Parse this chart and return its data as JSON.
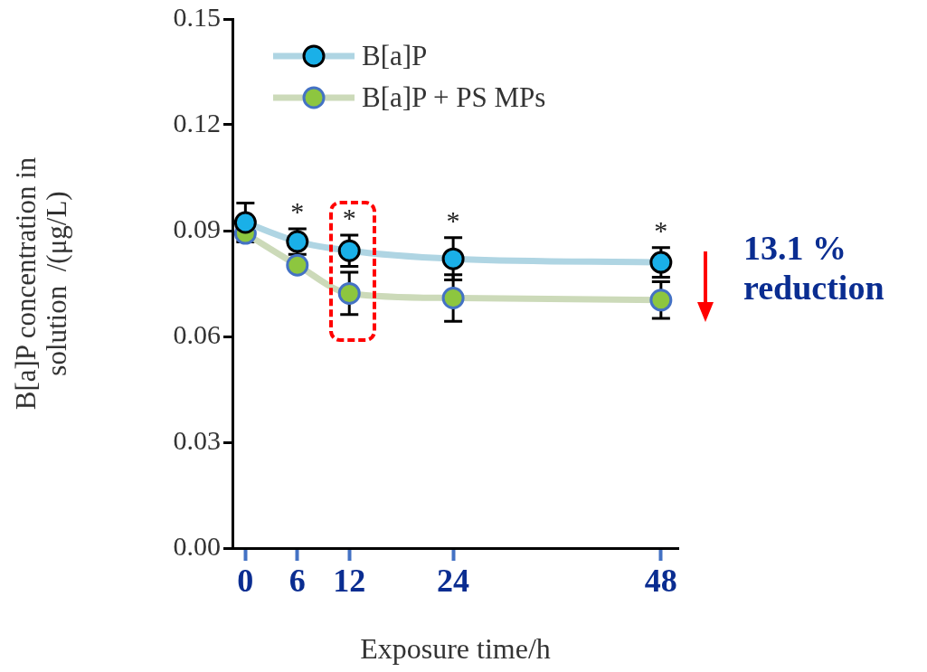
{
  "chart_data": {
    "type": "line",
    "xlabel": "Exposure time/h",
    "ylabel": "B[a]P concentration in\nsolution  /(μg/L)",
    "x": [
      0,
      6,
      12,
      24,
      48
    ],
    "xlim": [
      -1.5,
      50
    ],
    "xticks": [
      0,
      6,
      12,
      24,
      48
    ],
    "ylim": [
      0,
      0.15
    ],
    "yticks": [
      {
        "value": 0,
        "label": "0.00"
      },
      {
        "value": 0.03,
        "label": "0.03"
      },
      {
        "value": 0.06,
        "label": "0.06"
      },
      {
        "value": 0.09,
        "label": "0.09"
      },
      {
        "value": 0.12,
        "label": "0.12"
      },
      {
        "value": 0.15,
        "label": "0.15"
      }
    ],
    "series": [
      {
        "name": "B[a]P",
        "color": "#1ab0e8",
        "values": [
          0.0923,
          0.0869,
          0.0843,
          0.082,
          0.081
        ],
        "errors": [
          0.0055,
          0.0036,
          0.0044,
          0.006,
          0.0042
        ]
      },
      {
        "name": "B[a]P + PS MPs",
        "color": "#8dc63f",
        "values": [
          0.0892,
          0.0802,
          0.0722,
          0.0709,
          0.0703
        ],
        "errors": [
          null,
          null,
          0.006,
          0.0066,
          0.0052
        ]
      }
    ],
    "marker": "circle",
    "legend": "top",
    "annotations": [
      "*",
      "*",
      "*",
      "*",
      "13.1 %\nreduction"
    ]
  }
}
